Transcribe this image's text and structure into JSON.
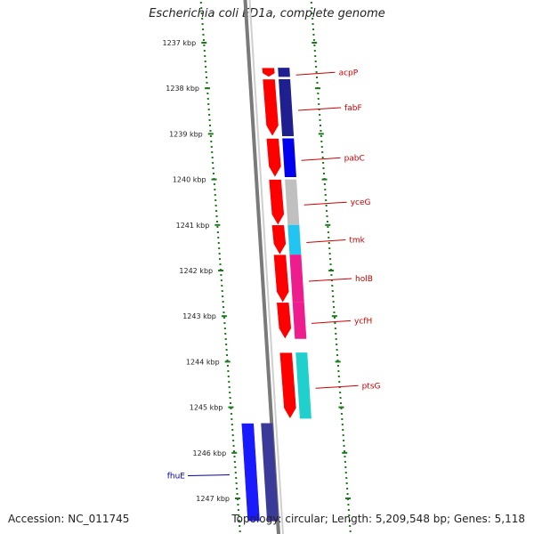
{
  "title": "Escherichia coli ED1a, complete genome",
  "footer": {
    "accession": "Accession: NC_011745",
    "summary": "Topology: circular; Length: 5,209,548 bp; Genes: 5,118"
  },
  "colors": {
    "forward_gene": "#ff0000",
    "reverse_gene": "#1a1aff",
    "label_forward": "#cc0000",
    "label_reverse": "#0000aa",
    "tick_marks": "#1a7a1a",
    "backbone": "#7a7a7a"
  },
  "ticks": [
    {
      "label": "1237 kbp"
    },
    {
      "label": "1238 kbp"
    },
    {
      "label": "1239 kbp"
    },
    {
      "label": "1240 kbp"
    },
    {
      "label": "1241 kbp"
    },
    {
      "label": "1242 kbp"
    },
    {
      "label": "1243 kbp"
    },
    {
      "label": "1244 kbp"
    },
    {
      "label": "1245 kbp"
    },
    {
      "label": "1246 kbp"
    },
    {
      "label": "1247 kbp"
    }
  ],
  "genes": [
    {
      "name": "acpP",
      "strand": "forward",
      "track_color": "#1f1f8f",
      "start_kbp": 1237.55,
      "end_kbp": 1237.75
    },
    {
      "name": "fabF",
      "strand": "forward",
      "track_color": "#1f1f8f",
      "start_kbp": 1237.8,
      "end_kbp": 1239.05
    },
    {
      "name": "pabC",
      "strand": "forward",
      "track_color": "#0000ee",
      "start_kbp": 1239.1,
      "end_kbp": 1239.95
    },
    {
      "name": "yceG",
      "strand": "forward",
      "track_color": "#c0c0c0",
      "start_kbp": 1240.0,
      "end_kbp": 1241.0
    },
    {
      "name": "tmk",
      "strand": "forward",
      "track_color": "#22c4f2",
      "start_kbp": 1241.0,
      "end_kbp": 1241.65
    },
    {
      "name": "holB",
      "strand": "forward",
      "track_color": "#ee1d8e",
      "start_kbp": 1241.65,
      "end_kbp": 1242.7
    },
    {
      "name": "ycfH",
      "strand": "forward",
      "track_color": "#ee1d8e",
      "start_kbp": 1242.7,
      "end_kbp": 1243.5
    },
    {
      "name": "ptsG",
      "strand": "forward",
      "track_color": "#20d0cc",
      "start_kbp": 1243.8,
      "end_kbp": 1245.25
    },
    {
      "name": "fhuE",
      "strand": "reverse",
      "track_color": "#3a3a99",
      "start_kbp": 1245.35,
      "end_kbp": 1247.5
    }
  ]
}
